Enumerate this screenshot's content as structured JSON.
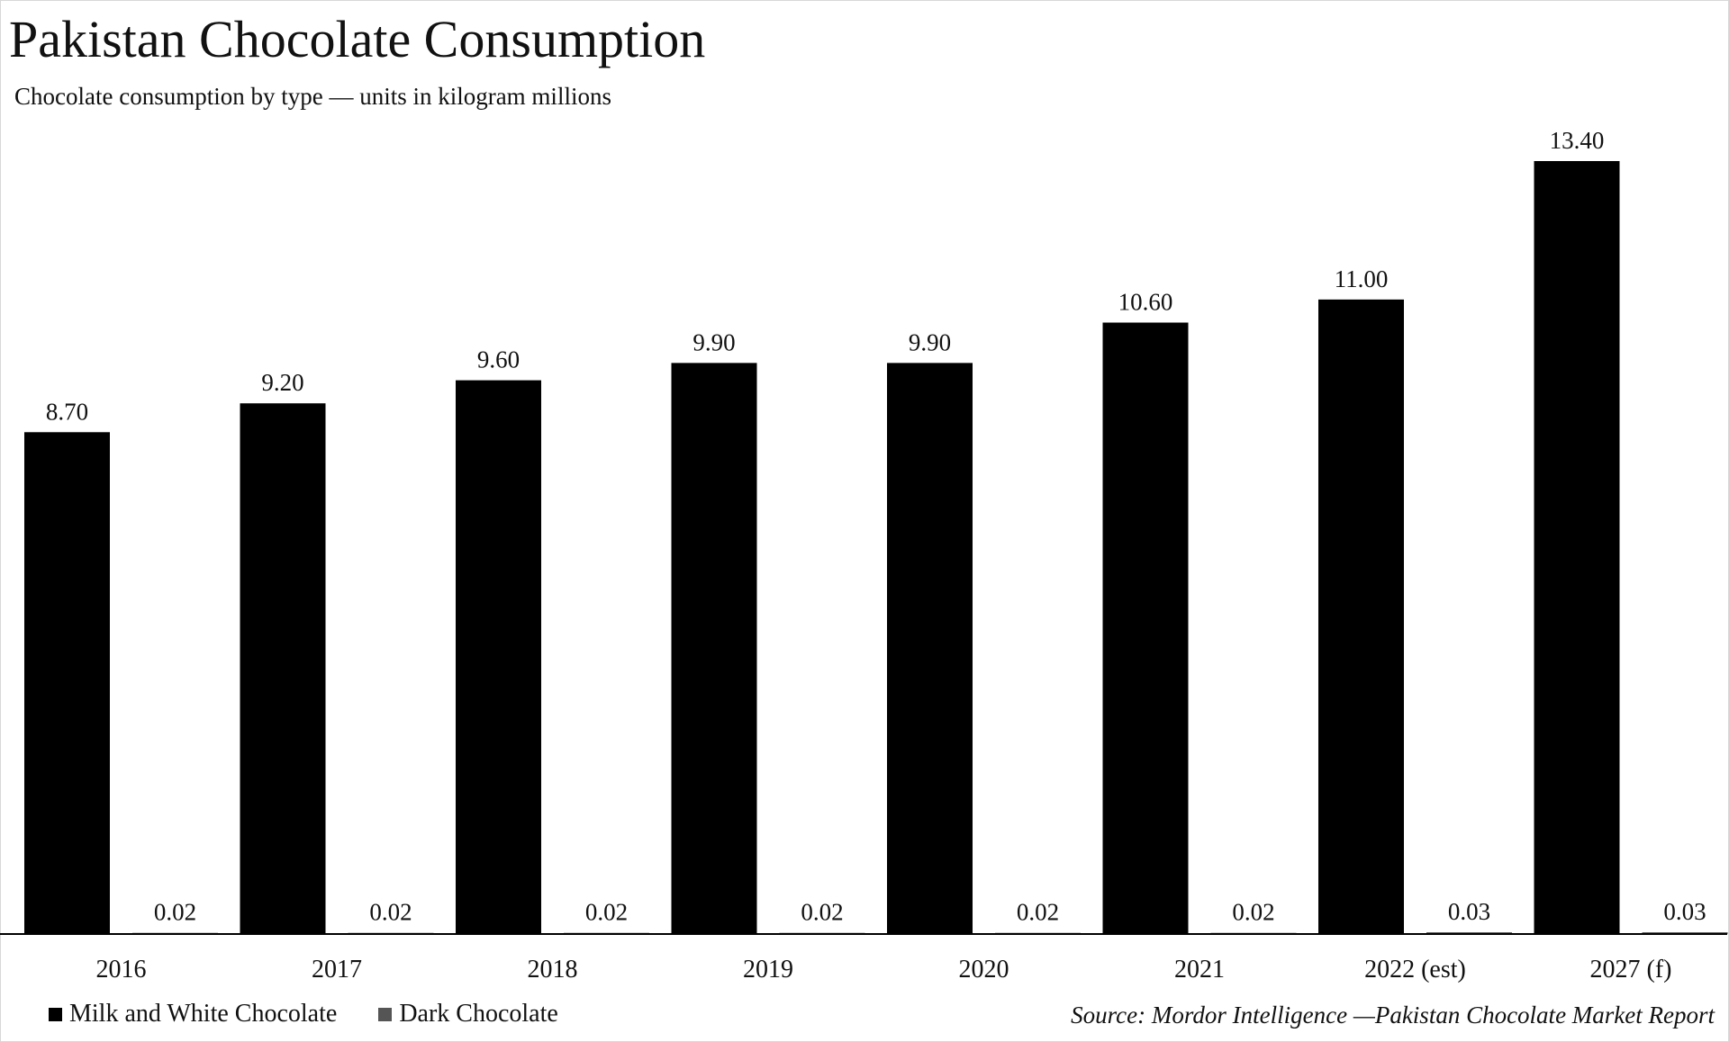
{
  "title": "Pakistan Chocolate Consumption",
  "subtitle": "Chocolate consumption by type — units in kilogram millions",
  "source": "Source: Mordor Intelligence —Pakistan Chocolate Market Report",
  "colors": {
    "milk": "#000000",
    "dark": "#555555",
    "axis": "#000000",
    "text": "#111111"
  },
  "chart_data": {
    "type": "bar",
    "categories": [
      "2016",
      "2017",
      "2018",
      "2019",
      "2020",
      "2021",
      "2022 (est)",
      "2027 (f)"
    ],
    "series": [
      {
        "name": "Milk and White Chocolate",
        "values": [
          8.7,
          9.2,
          9.6,
          9.9,
          9.9,
          10.6,
          11.0,
          13.4
        ],
        "labels": [
          "8.70",
          "9.20",
          "9.60",
          "9.90",
          "9.90",
          "10.60",
          "11.00",
          "13.40"
        ]
      },
      {
        "name": "Dark Chocolate",
        "values": [
          0.02,
          0.02,
          0.02,
          0.02,
          0.02,
          0.02,
          0.03,
          0.03
        ],
        "labels": [
          "0.02",
          "0.02",
          "0.02",
          "0.02",
          "0.02",
          "0.02",
          "0.03",
          "0.03"
        ]
      }
    ],
    "title": "Pakistan Chocolate Consumption",
    "subtitle": "Chocolate consumption by type — units in kilogram millions",
    "xlabel": "",
    "ylabel": "",
    "ylim": [
      0,
      13.4
    ],
    "grid": false,
    "legend_position": "bottom-left"
  }
}
